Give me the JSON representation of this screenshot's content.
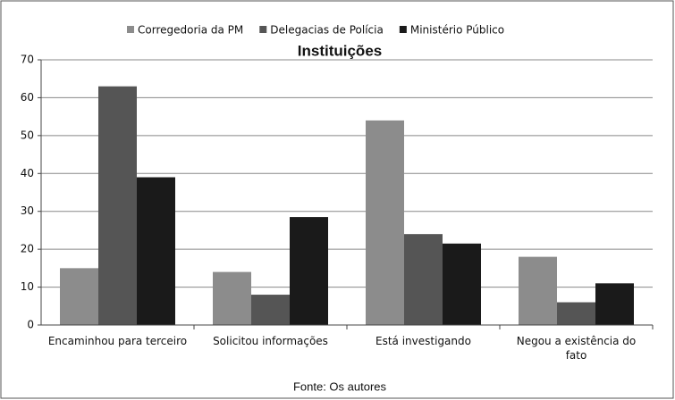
{
  "chart_data": {
    "type": "bar",
    "title": "Instituições",
    "source": "Fonte: Os autores",
    "categories": [
      "Encaminhou para terceiro",
      "Solicitou informações",
      "Está investigando",
      "Negou a existência do fato"
    ],
    "series": [
      {
        "name": "Corregedoria da PM",
        "color": "#8c8c8c",
        "values": [
          15,
          14,
          54,
          18
        ]
      },
      {
        "name": "Delegacias de Polícia",
        "color": "#555555",
        "values": [
          63,
          8,
          24,
          6
        ]
      },
      {
        "name": "Ministério Público",
        "color": "#1a1a1a",
        "values": [
          39,
          28.5,
          21.5,
          11
        ]
      }
    ],
    "ylim": [
      0,
      70
    ],
    "yticks": [
      0,
      10,
      20,
      30,
      40,
      50,
      60,
      70
    ],
    "grid": true,
    "legend": "top"
  }
}
